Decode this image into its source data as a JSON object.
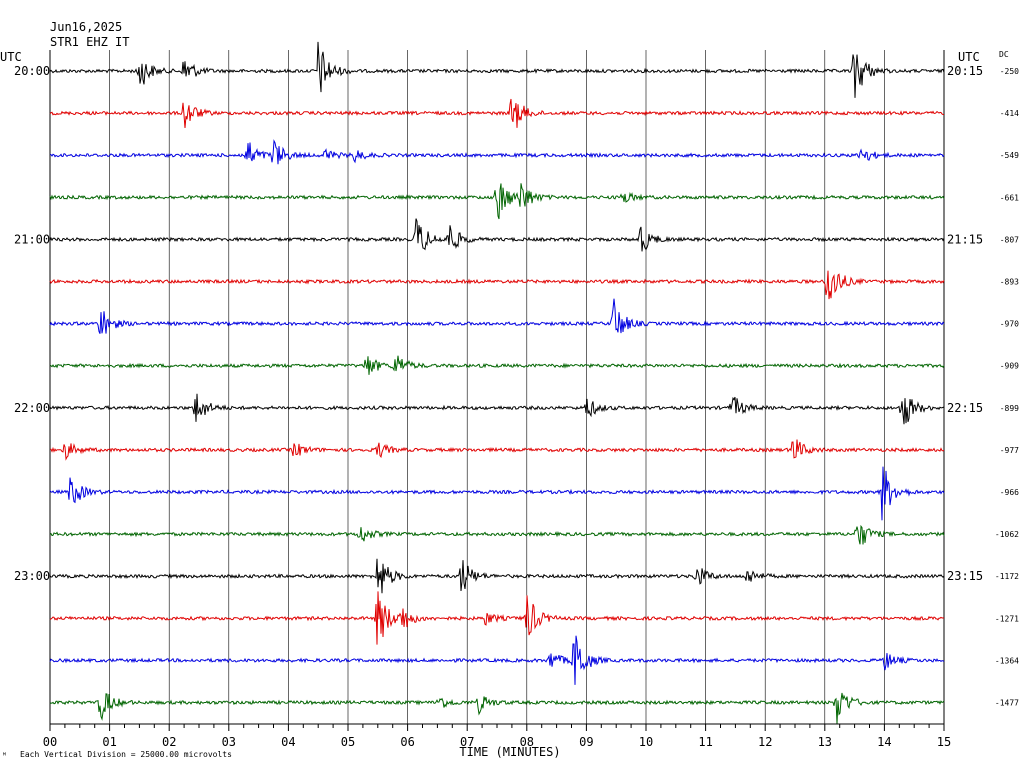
{
  "header": {
    "date": "Jun16,2025",
    "station": "STR1 EHZ IT",
    "utc_left": "UTC",
    "utc_right": "UTC",
    "dc_label": "DC"
  },
  "footer": {
    "note": "Each Vertical Division = 25000.00 microvolts",
    "logo_mark": "ᴹ"
  },
  "chart_data": {
    "type": "line",
    "title": "",
    "xlabel": "TIME (MINUTES)",
    "ylabel": "",
    "xlim": [
      0,
      15
    ],
    "x_ticks": [
      "00",
      "01",
      "02",
      "03",
      "04",
      "05",
      "06",
      "07",
      "08",
      "09",
      "10",
      "11",
      "12",
      "13",
      "14",
      "15"
    ],
    "grid": true,
    "colors": [
      "#000000",
      "#e00000",
      "#0000e0",
      "#006400"
    ],
    "rows": [
      {
        "left": "20:00",
        "right": "20:15",
        "dc": "-250",
        "color": "#000000",
        "events": [
          [
            1.5,
            0.6
          ],
          [
            2.25,
            0.5
          ],
          [
            4.5,
            1.0
          ],
          [
            13.5,
            1.0
          ]
        ]
      },
      {
        "left": "",
        "right": "",
        "dc": "-414",
        "color": "#e00000",
        "events": [
          [
            2.25,
            0.55
          ],
          [
            7.75,
            0.7
          ]
        ]
      },
      {
        "left": "",
        "right": "",
        "dc": "-549",
        "color": "#0000e0",
        "events": [
          [
            3.3,
            0.5
          ],
          [
            3.75,
            0.5
          ],
          [
            4.6,
            0.2
          ],
          [
            5.1,
            0.2
          ],
          [
            13.6,
            0.3
          ]
        ]
      },
      {
        "left": "",
        "right": "",
        "dc": "-661",
        "color": "#006400",
        "events": [
          [
            7.5,
            0.8
          ],
          [
            7.9,
            0.5
          ],
          [
            9.6,
            0.2
          ]
        ]
      },
      {
        "left": "21:00",
        "right": "21:15",
        "dc": "-807",
        "color": "#000000",
        "events": [
          [
            6.15,
            0.75
          ],
          [
            6.7,
            0.5
          ],
          [
            9.9,
            0.5
          ]
        ]
      },
      {
        "left": "",
        "right": "",
        "dc": "-893",
        "color": "#e00000",
        "events": [
          [
            13.05,
            1.0
          ]
        ]
      },
      {
        "left": "",
        "right": "",
        "dc": "-970",
        "color": "#0000e0",
        "events": [
          [
            0.85,
            0.55
          ],
          [
            9.45,
            0.8
          ]
        ]
      },
      {
        "left": "",
        "right": "",
        "dc": "-909",
        "color": "#006400",
        "events": [
          [
            5.3,
            0.4
          ],
          [
            5.8,
            0.4
          ]
        ]
      },
      {
        "left": "22:00",
        "right": "22:15",
        "dc": "-899",
        "color": "#000000",
        "events": [
          [
            2.45,
            0.55
          ],
          [
            9.0,
            0.35
          ],
          [
            11.45,
            0.4
          ],
          [
            14.3,
            0.75
          ]
        ]
      },
      {
        "left": "",
        "right": "",
        "dc": "-977",
        "color": "#e00000",
        "events": [
          [
            0.25,
            0.3
          ],
          [
            4.1,
            0.25
          ],
          [
            5.5,
            0.25
          ],
          [
            12.45,
            0.5
          ]
        ]
      },
      {
        "left": "",
        "right": "",
        "dc": "-966",
        "color": "#0000e0",
        "events": [
          [
            0.35,
            0.55
          ],
          [
            13.95,
            1.0
          ]
        ]
      },
      {
        "left": "",
        "right": "",
        "dc": "-1062",
        "color": "#006400",
        "events": [
          [
            5.2,
            0.3
          ],
          [
            13.55,
            0.55
          ]
        ]
      },
      {
        "left": "23:00",
        "right": "23:15",
        "dc": "-1172",
        "color": "#000000",
        "events": [
          [
            5.5,
            0.85
          ],
          [
            6.9,
            0.6
          ],
          [
            10.85,
            0.35
          ],
          [
            11.7,
            0.25
          ]
        ]
      },
      {
        "left": "",
        "right": "",
        "dc": "-1271",
        "color": "#e00000",
        "events": [
          [
            5.5,
            1.0
          ],
          [
            5.9,
            0.4
          ],
          [
            8.0,
            0.8
          ],
          [
            7.3,
            0.2
          ]
        ]
      },
      {
        "left": "",
        "right": "",
        "dc": "-1364",
        "color": "#0000e0",
        "events": [
          [
            8.8,
            1.0
          ],
          [
            8.4,
            0.3
          ],
          [
            14.0,
            0.3
          ]
        ]
      },
      {
        "left": "",
        "right": "",
        "dc": "-1477",
        "color": "#006400",
        "events": [
          [
            0.85,
            0.6
          ],
          [
            6.5,
            0.25
          ],
          [
            7.2,
            0.3
          ],
          [
            13.2,
            0.7
          ]
        ]
      }
    ]
  }
}
